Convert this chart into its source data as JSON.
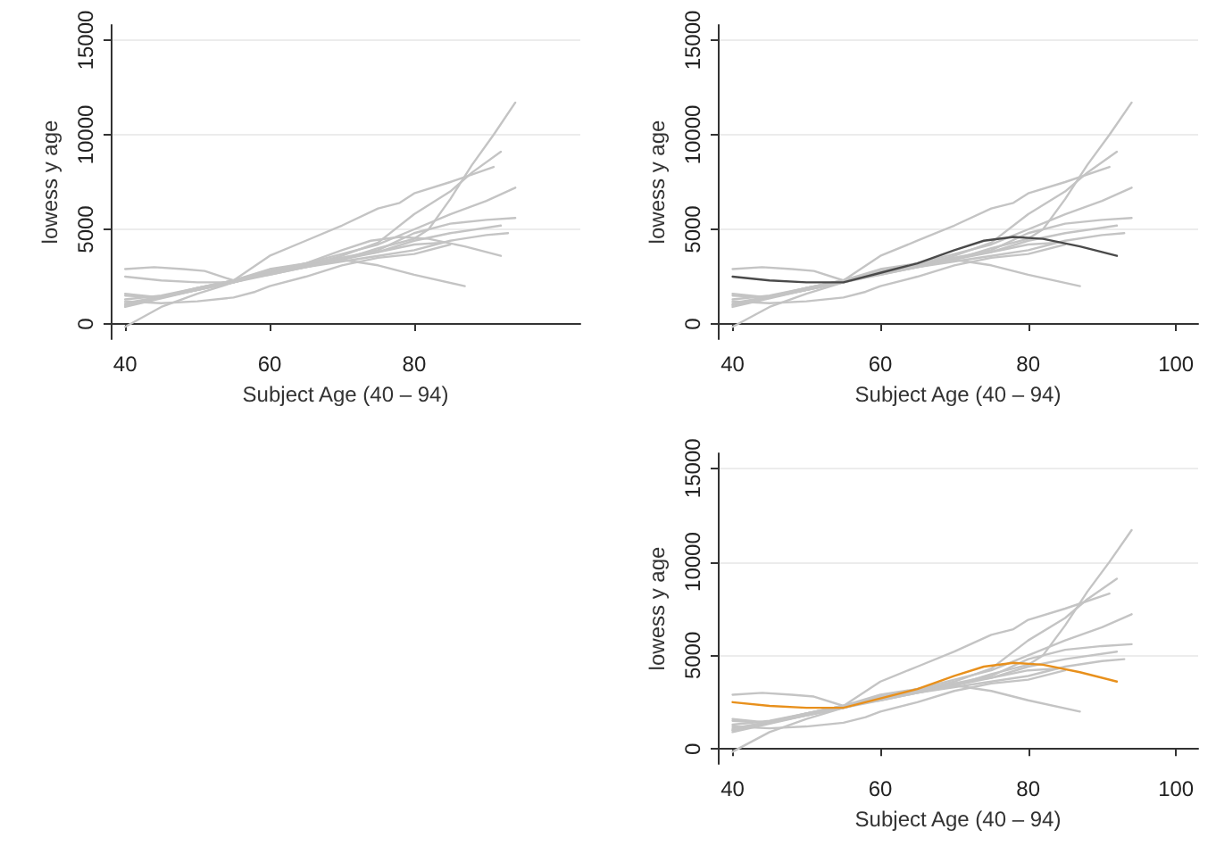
{
  "chart_data": [
    {
      "type": "line",
      "xlabel": "Subject Age (40 – 94)",
      "ylabel": "lowess y age",
      "xlim": [
        38,
        103
      ],
      "xticks": [
        40,
        60,
        80
      ],
      "ylim": [
        -800,
        15800
      ],
      "yticks": [
        0,
        5000,
        10000,
        15000
      ],
      "grid": "y",
      "series": [
        {
          "color": "#c4c4c4",
          "x": [
            40,
            45,
            50,
            55,
            60,
            65,
            70,
            75,
            80,
            82,
            85,
            88,
            91,
            94
          ],
          "values": [
            -150,
            900,
            1600,
            2200,
            2700,
            3000,
            3400,
            4000,
            4500,
            5000,
            6600,
            8400,
            10000,
            11700
          ]
        },
        {
          "color": "#c4c4c4",
          "x": [
            40,
            45,
            50,
            55,
            60,
            65,
            70,
            75,
            78,
            80,
            85,
            91
          ],
          "values": [
            1500,
            1400,
            1800,
            2300,
            3600,
            4400,
            5200,
            6100,
            6400,
            6900,
            7500,
            8300
          ]
        },
        {
          "color": "#c4c4c4",
          "x": [
            40,
            45,
            50,
            55,
            60,
            65,
            70,
            75,
            80,
            85,
            88,
            92
          ],
          "values": [
            1000,
            1400,
            1900,
            2300,
            2700,
            3100,
            3600,
            4300,
            5800,
            7000,
            8000,
            9100
          ]
        },
        {
          "color": "#c4c4c4",
          "x": [
            40,
            45,
            50,
            55,
            60,
            65,
            70,
            75,
            80,
            85,
            90,
            94
          ],
          "values": [
            1300,
            1500,
            1900,
            2300,
            2800,
            3200,
            3700,
            4200,
            5000,
            5800,
            6500,
            7200
          ]
        },
        {
          "color": "#c4c4c4",
          "x": [
            40,
            50,
            55,
            60,
            65,
            70,
            75,
            80,
            85,
            90,
            94
          ],
          "values": [
            900,
            1800,
            2200,
            2700,
            3100,
            3500,
            3900,
            4800,
            5300,
            5500,
            5600
          ]
        },
        {
          "color": "#c4c4c4",
          "x": [
            40,
            50,
            55,
            60,
            65,
            70,
            75,
            80,
            85,
            92
          ],
          "values": [
            1000,
            1900,
            2300,
            2600,
            3000,
            3400,
            3800,
            4400,
            4800,
            5200
          ]
        },
        {
          "color": "#c4c4c4",
          "x": [
            40,
            50,
            55,
            60,
            65,
            70,
            75,
            80,
            85,
            90,
            93
          ],
          "values": [
            1100,
            1800,
            2200,
            2600,
            3000,
            3300,
            3600,
            3900,
            4400,
            4700,
            4800
          ]
        },
        {
          "color": "#c4c4c4",
          "x": [
            40,
            45,
            50,
            55,
            60,
            65,
            70,
            74,
            78,
            82,
            87,
            92
          ],
          "values": [
            2500,
            2300,
            2200,
            2200,
            2700,
            3200,
            3900,
            4400,
            4600,
            4500,
            4100,
            3600
          ]
        },
        {
          "color": "#c4c4c4",
          "x": [
            40,
            45,
            50,
            55,
            60,
            65,
            70,
            75,
            80,
            87
          ],
          "values": [
            1600,
            1400,
            1800,
            2200,
            2800,
            3100,
            3400,
            3100,
            2600,
            2000
          ]
        },
        {
          "color": "#c4c4c4",
          "x": [
            40,
            44,
            48,
            51,
            55,
            60,
            65,
            70,
            75,
            80,
            84
          ],
          "values": [
            2900,
            3000,
            2900,
            2800,
            2300,
            2900,
            3200,
            3500,
            3800,
            4200,
            4300
          ]
        },
        {
          "color": "#c4c4c4",
          "x": [
            40,
            45,
            50,
            55,
            58,
            60,
            65,
            70,
            75,
            80,
            85
          ],
          "values": [
            1200,
            1100,
            1200,
            1400,
            1700,
            2000,
            2500,
            3100,
            3500,
            3700,
            4200
          ]
        }
      ]
    },
    {
      "type": "line",
      "xlabel": "Subject Age (40 – 94)",
      "ylabel": "lowess y age",
      "xlim": [
        38,
        103
      ],
      "xticks": [
        40,
        60,
        80,
        100
      ],
      "ylim": [
        -800,
        15800
      ],
      "yticks": [
        0,
        5000,
        10000,
        15000
      ],
      "grid": "y",
      "series": [
        {
          "color": "#c4c4c4",
          "x": [
            40,
            45,
            50,
            55,
            60,
            65,
            70,
            75,
            80,
            82,
            85,
            88,
            91,
            94
          ],
          "values": [
            -150,
            900,
            1600,
            2200,
            2700,
            3000,
            3400,
            4000,
            4500,
            5000,
            6600,
            8400,
            10000,
            11700
          ]
        },
        {
          "color": "#c4c4c4",
          "x": [
            40,
            45,
            50,
            55,
            60,
            65,
            70,
            75,
            78,
            80,
            85,
            91
          ],
          "values": [
            1500,
            1400,
            1800,
            2300,
            3600,
            4400,
            5200,
            6100,
            6400,
            6900,
            7500,
            8300
          ]
        },
        {
          "color": "#c4c4c4",
          "x": [
            40,
            45,
            50,
            55,
            60,
            65,
            70,
            75,
            80,
            85,
            88,
            92
          ],
          "values": [
            1000,
            1400,
            1900,
            2300,
            2700,
            3100,
            3600,
            4300,
            5800,
            7000,
            8000,
            9100
          ]
        },
        {
          "color": "#c4c4c4",
          "x": [
            40,
            45,
            50,
            55,
            60,
            65,
            70,
            75,
            80,
            85,
            90,
            94
          ],
          "values": [
            1300,
            1500,
            1900,
            2300,
            2800,
            3200,
            3700,
            4200,
            5000,
            5800,
            6500,
            7200
          ]
        },
        {
          "color": "#c4c4c4",
          "x": [
            40,
            50,
            55,
            60,
            65,
            70,
            75,
            80,
            85,
            90,
            94
          ],
          "values": [
            900,
            1800,
            2200,
            2700,
            3100,
            3500,
            3900,
            4800,
            5300,
            5500,
            5600
          ]
        },
        {
          "color": "#c4c4c4",
          "x": [
            40,
            50,
            55,
            60,
            65,
            70,
            75,
            80,
            85,
            92
          ],
          "values": [
            1000,
            1900,
            2300,
            2600,
            3000,
            3400,
            3800,
            4400,
            4800,
            5200
          ]
        },
        {
          "color": "#c4c4c4",
          "x": [
            40,
            50,
            55,
            60,
            65,
            70,
            75,
            80,
            85,
            90,
            93
          ],
          "values": [
            1100,
            1800,
            2200,
            2600,
            3000,
            3300,
            3600,
            3900,
            4400,
            4700,
            4800
          ]
        },
        {
          "color": "#c4c4c4",
          "x": [
            40,
            45,
            50,
            55,
            60,
            65,
            70,
            75,
            80,
            87
          ],
          "values": [
            1600,
            1400,
            1800,
            2200,
            2800,
            3100,
            3400,
            3100,
            2600,
            2000
          ]
        },
        {
          "color": "#c4c4c4",
          "x": [
            40,
            44,
            48,
            51,
            55,
            60,
            65,
            70,
            75,
            80,
            84
          ],
          "values": [
            2900,
            3000,
            2900,
            2800,
            2300,
            2900,
            3200,
            3500,
            3800,
            4200,
            4300
          ]
        },
        {
          "color": "#c4c4c4",
          "x": [
            40,
            45,
            50,
            55,
            58,
            60,
            65,
            70,
            75,
            80,
            85
          ],
          "values": [
            1200,
            1100,
            1200,
            1400,
            1700,
            2000,
            2500,
            3100,
            3500,
            3700,
            4200
          ]
        },
        {
          "color": "#4a4a4a",
          "x": [
            40,
            45,
            50,
            55,
            60,
            65,
            70,
            74,
            78,
            82,
            87,
            92
          ],
          "values": [
            2500,
            2300,
            2200,
            2200,
            2700,
            3200,
            3900,
            4400,
            4600,
            4500,
            4100,
            3600
          ]
        }
      ]
    },
    {
      "type": "line",
      "xlabel": "Subject Age (40 – 94)",
      "ylabel": "lowess y age",
      "xlim": [
        38,
        103
      ],
      "xticks": [
        40,
        60,
        80,
        100
      ],
      "ylim": [
        -800,
        15800
      ],
      "yticks": [
        0,
        5000,
        10000,
        15000
      ],
      "grid": "y",
      "series": [
        {
          "color": "#c4c4c4",
          "x": [
            40,
            45,
            50,
            55,
            60,
            65,
            70,
            75,
            80,
            82,
            85,
            88,
            91,
            94
          ],
          "values": [
            -150,
            900,
            1600,
            2200,
            2700,
            3000,
            3400,
            4000,
            4500,
            5000,
            6600,
            8400,
            10000,
            11700
          ]
        },
        {
          "color": "#c4c4c4",
          "x": [
            40,
            45,
            50,
            55,
            60,
            65,
            70,
            75,
            78,
            80,
            85,
            91
          ],
          "values": [
            1500,
            1400,
            1800,
            2300,
            3600,
            4400,
            5200,
            6100,
            6400,
            6900,
            7500,
            8300
          ]
        },
        {
          "color": "#c4c4c4",
          "x": [
            40,
            45,
            50,
            55,
            60,
            65,
            70,
            75,
            80,
            85,
            88,
            92
          ],
          "values": [
            1000,
            1400,
            1900,
            2300,
            2700,
            3100,
            3600,
            4300,
            5800,
            7000,
            8000,
            9100
          ]
        },
        {
          "color": "#c4c4c4",
          "x": [
            40,
            45,
            50,
            55,
            60,
            65,
            70,
            75,
            80,
            85,
            90,
            94
          ],
          "values": [
            1300,
            1500,
            1900,
            2300,
            2800,
            3200,
            3700,
            4200,
            5000,
            5800,
            6500,
            7200
          ]
        },
        {
          "color": "#c4c4c4",
          "x": [
            40,
            50,
            55,
            60,
            65,
            70,
            75,
            80,
            85,
            90,
            94
          ],
          "values": [
            900,
            1800,
            2200,
            2700,
            3100,
            3500,
            3900,
            4800,
            5300,
            5500,
            5600
          ]
        },
        {
          "color": "#c4c4c4",
          "x": [
            40,
            50,
            55,
            60,
            65,
            70,
            75,
            80,
            85,
            92
          ],
          "values": [
            1000,
            1900,
            2300,
            2600,
            3000,
            3400,
            3800,
            4400,
            4800,
            5200
          ]
        },
        {
          "color": "#c4c4c4",
          "x": [
            40,
            50,
            55,
            60,
            65,
            70,
            75,
            80,
            85,
            90,
            93
          ],
          "values": [
            1100,
            1800,
            2200,
            2600,
            3000,
            3300,
            3600,
            3900,
            4400,
            4700,
            4800
          ]
        },
        {
          "color": "#c4c4c4",
          "x": [
            40,
            45,
            50,
            55,
            60,
            65,
            70,
            75,
            80,
            87
          ],
          "values": [
            1600,
            1400,
            1800,
            2200,
            2800,
            3100,
            3400,
            3100,
            2600,
            2000
          ]
        },
        {
          "color": "#c4c4c4",
          "x": [
            40,
            44,
            48,
            51,
            55,
            60,
            65,
            70,
            75,
            80,
            84
          ],
          "values": [
            2900,
            3000,
            2900,
            2800,
            2300,
            2900,
            3200,
            3500,
            3800,
            4200,
            4300
          ]
        },
        {
          "color": "#c4c4c4",
          "x": [
            40,
            45,
            50,
            55,
            58,
            60,
            65,
            70,
            75,
            80,
            85
          ],
          "values": [
            1200,
            1100,
            1200,
            1400,
            1700,
            2000,
            2500,
            3100,
            3500,
            3700,
            4200
          ]
        },
        {
          "color": "#e8901c",
          "x": [
            40,
            45,
            50,
            55,
            60,
            65,
            70,
            74,
            78,
            82,
            87,
            92
          ],
          "values": [
            2500,
            2300,
            2200,
            2200,
            2700,
            3200,
            3900,
            4400,
            4600,
            4500,
            4100,
            3600
          ]
        }
      ]
    }
  ]
}
